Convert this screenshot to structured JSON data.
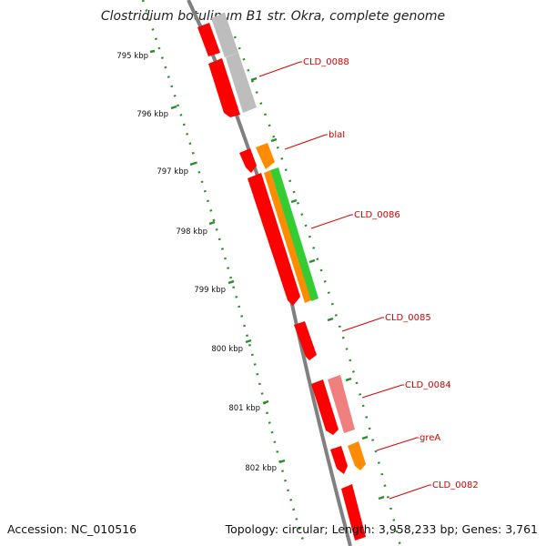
{
  "title": "Clostridium botulinum B1 str. Okra, complete genome",
  "accession": "Accession: NC_010516",
  "topology": "Topology: circular; Length: 3,958,233 bp; Genes: 3,761",
  "scale_labels": [
    "795 kbp",
    "796 kbp",
    "797 kbp",
    "798 kbp",
    "799 kbp",
    "800 kbp",
    "801 kbp",
    "802 kbp"
  ],
  "gene_labels": [
    "CLD_0088",
    "blaI",
    "CLD_0086",
    "CLD_0085",
    "CLD_0084",
    "greA",
    "CLD_0082"
  ],
  "colors": {
    "cds": "#ff0000",
    "pseudo": "#f08080",
    "gray": "#bdbdbd",
    "orange": "#ff8c00",
    "green": "#33cc33",
    "backbone": "#808080",
    "scale": "#2e8b2e",
    "label_line": "#d40000"
  }
}
